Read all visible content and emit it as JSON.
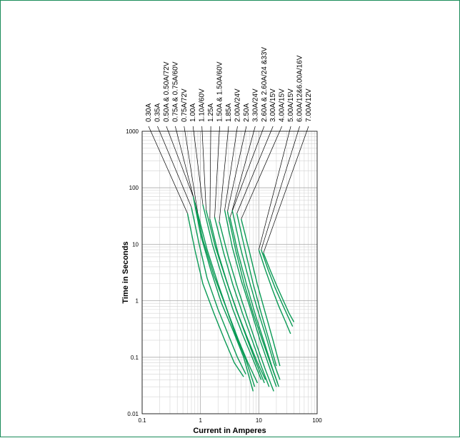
{
  "chart_data": {
    "type": "line",
    "xlabel": "Current in Amperes",
    "ylabel": "Time in Seconds",
    "x_scale": "log",
    "y_scale": "log",
    "xlim": [
      0.1,
      100
    ],
    "ylim": [
      0.01,
      1000
    ],
    "grid": true,
    "x_ticks": [
      "0.1",
      "1",
      "10",
      "100"
    ],
    "y_ticks": [
      "0.01",
      "0.1",
      "1",
      "10",
      "100",
      "1000"
    ],
    "line_color": "#0a9a55",
    "leader_color": "#000000",
    "series": [
      {
        "name": "0.30A",
        "points": [
          [
            0.6,
            35
          ],
          [
            0.8,
            8
          ],
          [
            1.1,
            2.0
          ],
          [
            1.7,
            0.6
          ],
          [
            2.6,
            0.2
          ],
          [
            3.8,
            0.08
          ],
          [
            5.5,
            0.045
          ]
        ]
      },
      {
        "name": "0.35A",
        "points": [
          [
            0.7,
            45
          ],
          [
            0.95,
            10
          ],
          [
            1.3,
            2.5
          ],
          [
            2.0,
            0.7
          ],
          [
            3.0,
            0.25
          ],
          [
            4.3,
            0.1
          ],
          [
            6.0,
            0.05
          ]
        ]
      },
      {
        "name": "0.50A & 0.50A/72V",
        "points": [
          [
            0.75,
            70
          ],
          [
            1.0,
            15
          ],
          [
            1.5,
            3.5
          ],
          [
            2.3,
            0.9
          ],
          [
            3.6,
            0.3
          ],
          [
            5.5,
            0.1
          ],
          [
            8.0,
            0.025
          ]
        ]
      },
      {
        "name": "0.75A & 0.75A/60V",
        "points": [
          [
            0.8,
            55
          ],
          [
            1.1,
            12
          ],
          [
            1.7,
            2.8
          ],
          [
            2.7,
            0.8
          ],
          [
            4.0,
            0.25
          ],
          [
            6.0,
            0.09
          ],
          [
            8.5,
            0.03
          ]
        ]
      },
      {
        "name": "0.75A/72V",
        "points": [
          [
            0.9,
            35
          ],
          [
            1.3,
            8
          ],
          [
            2.0,
            2.0
          ],
          [
            3.0,
            0.6
          ],
          [
            4.5,
            0.2
          ],
          [
            6.5,
            0.08
          ],
          [
            9.5,
            0.035
          ]
        ]
      },
      {
        "name": "1.00A",
        "points": [
          [
            1.1,
            50
          ],
          [
            1.6,
            10
          ],
          [
            2.4,
            2.5
          ],
          [
            3.6,
            0.7
          ],
          [
            5.3,
            0.25
          ],
          [
            8.0,
            0.09
          ],
          [
            11,
            0.04
          ]
        ]
      },
      {
        "name": "1.10A/60V",
        "points": [
          [
            1.25,
            40
          ],
          [
            1.8,
            9
          ],
          [
            2.8,
            2.2
          ],
          [
            4.2,
            0.65
          ],
          [
            6.2,
            0.22
          ],
          [
            9.0,
            0.08
          ],
          [
            12.5,
            0.035
          ]
        ]
      },
      {
        "name": "1.25A",
        "points": [
          [
            1.45,
            28
          ],
          [
            2.0,
            7
          ],
          [
            3.0,
            1.8
          ],
          [
            4.5,
            0.55
          ],
          [
            6.6,
            0.2
          ],
          [
            9.5,
            0.08
          ],
          [
            13,
            0.04
          ]
        ]
      },
      {
        "name": "1.50A & 1.50A/60V",
        "points": [
          [
            1.75,
            30
          ],
          [
            2.5,
            7
          ],
          [
            3.6,
            1.9
          ],
          [
            5.4,
            0.55
          ],
          [
            8.0,
            0.18
          ],
          [
            11,
            0.07
          ],
          [
            15,
            0.03
          ]
        ]
      },
      {
        "name": "1.85A",
        "points": [
          [
            2.1,
            25
          ],
          [
            3.0,
            6
          ],
          [
            4.4,
            1.6
          ],
          [
            6.6,
            0.45
          ],
          [
            9.5,
            0.15
          ],
          [
            13,
            0.06
          ],
          [
            18,
            0.025
          ]
        ]
      },
      {
        "name": "2.00A/24V",
        "points": [
          [
            2.6,
            40
          ],
          [
            3.5,
            9
          ],
          [
            5.0,
            2.3
          ],
          [
            7.4,
            0.65
          ],
          [
            10.5,
            0.2
          ],
          [
            15,
            0.07
          ],
          [
            20,
            0.03
          ]
        ]
      },
      {
        "name": "2.50A",
        "points": [
          [
            2.9,
            38
          ],
          [
            4.0,
            8
          ],
          [
            5.6,
            2.0
          ],
          [
            8.0,
            0.6
          ],
          [
            11.5,
            0.2
          ],
          [
            16,
            0.075
          ],
          [
            21,
            0.035
          ]
        ]
      },
      {
        "name": "3.30A/24V",
        "points": [
          [
            3.5,
            40
          ],
          [
            4.8,
            9
          ],
          [
            6.8,
            2.3
          ],
          [
            9.5,
            0.7
          ],
          [
            13.5,
            0.22
          ],
          [
            18,
            0.08
          ],
          [
            23,
            0.04
          ]
        ]
      },
      {
        "name": "2.60A & 2.60A/24 &33V",
        "points": [
          [
            3.2,
            30
          ],
          [
            4.4,
            7
          ],
          [
            6.2,
            1.9
          ],
          [
            8.8,
            0.55
          ],
          [
            12.5,
            0.18
          ],
          [
            17,
            0.065
          ],
          [
            22,
            0.03
          ]
        ]
      },
      {
        "name": "3.00A/15V",
        "points": [
          [
            4.2,
            35
          ],
          [
            5.8,
            8
          ],
          [
            8.0,
            2.0
          ],
          [
            11,
            0.6
          ],
          [
            15,
            0.2
          ],
          [
            20,
            0.07
          ]
        ]
      },
      {
        "name": "4.00A/15V",
        "points": [
          [
            5.0,
            28
          ],
          [
            7.0,
            7
          ],
          [
            9.5,
            1.9
          ],
          [
            13,
            0.6
          ],
          [
            17.5,
            0.2
          ],
          [
            23,
            0.07
          ]
        ]
      },
      {
        "name": "5.00A/15V",
        "points": [
          [
            10.0,
            8
          ],
          [
            13,
            3.5
          ],
          [
            17,
            1.6
          ],
          [
            22,
            0.8
          ],
          [
            28,
            0.45
          ],
          [
            35,
            0.26
          ]
        ]
      },
      {
        "name": "6.00A/12&6.00A/16V",
        "points": [
          [
            11.0,
            8
          ],
          [
            14.5,
            3.5
          ],
          [
            19,
            1.7
          ],
          [
            25,
            0.9
          ],
          [
            31,
            0.55
          ],
          [
            38,
            0.35
          ]
        ]
      },
      {
        "name": "7.00A/12V",
        "points": [
          [
            12.0,
            7
          ],
          [
            16,
            3.3
          ],
          [
            21,
            1.7
          ],
          [
            27,
            0.95
          ],
          [
            33,
            0.6
          ],
          [
            40,
            0.42
          ]
        ]
      }
    ]
  }
}
